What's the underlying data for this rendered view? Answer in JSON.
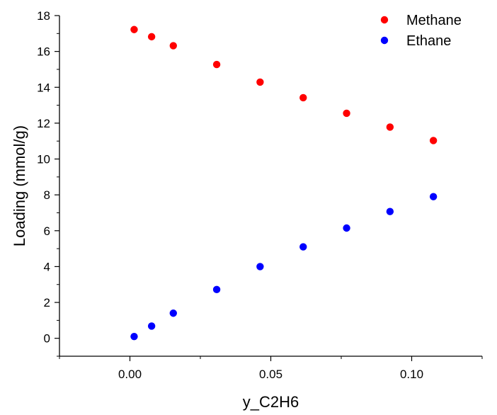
{
  "chart_data": {
    "type": "scatter",
    "title": "",
    "xlabel": "y_C2H6",
    "ylabel": "Loading (mmol/g)",
    "xlim": [
      -0.025,
      0.125
    ],
    "ylim": [
      -1,
      18
    ],
    "xticks": [
      0.0,
      0.05,
      0.1
    ],
    "xtick_labels": [
      "0.00",
      "0.05",
      "0.10"
    ],
    "yticks": [
      0,
      2,
      4,
      6,
      8,
      10,
      12,
      14,
      16,
      18
    ],
    "ytick_labels": [
      "0",
      "2",
      "4",
      "6",
      "8",
      "10",
      "12",
      "14",
      "16",
      "18"
    ],
    "grid": false,
    "legend_position": "top-right",
    "x": [
      0.0015,
      0.0077,
      0.0154,
      0.0308,
      0.0462,
      0.0615,
      0.0769,
      0.0923,
      0.1077
    ],
    "series": [
      {
        "name": "Methane",
        "color": "#ff0000",
        "values": [
          17.22,
          16.82,
          16.32,
          15.27,
          14.29,
          13.42,
          12.55,
          11.78,
          11.03
        ]
      },
      {
        "name": "Ethane",
        "color": "#0000ff",
        "values": [
          0.1,
          0.68,
          1.4,
          2.72,
          4.0,
          5.1,
          6.15,
          7.07,
          7.9
        ]
      }
    ]
  }
}
